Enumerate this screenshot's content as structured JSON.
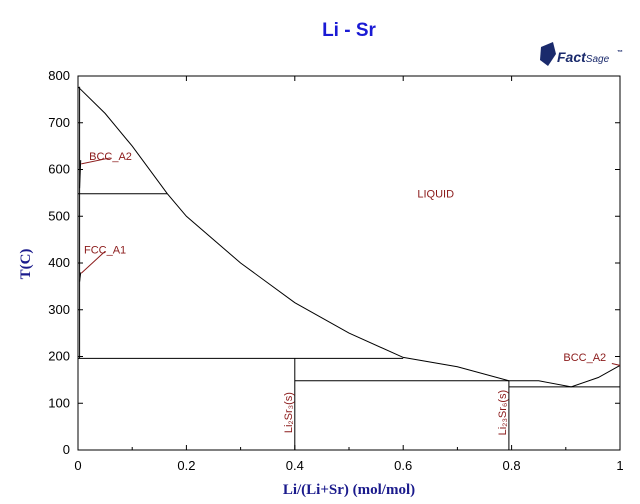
{
  "chart_data": {
    "type": "line",
    "title": "Li - Sr",
    "xlabel": "Li/(Li+Sr) (mol/mol)",
    "ylabel": "T(C)",
    "xlim": [
      0,
      1
    ],
    "ylim": [
      0,
      800
    ],
    "x_ticks": [
      0,
      0.2,
      0.4,
      0.6,
      0.8,
      1
    ],
    "y_ticks": [
      0,
      100,
      200,
      300,
      400,
      500,
      600,
      700,
      800
    ],
    "x_tick_labels": [
      "0",
      "0.2",
      "0.4",
      "0.6",
      "0.8",
      "1"
    ],
    "y_tick_labels": [
      "0",
      "100",
      "200",
      "300",
      "400",
      "500",
      "600",
      "700",
      "800"
    ],
    "grid": false,
    "series": [
      {
        "name": "",
        "kind": "liquidus",
        "points": [
          [
            0,
            777
          ],
          [
            0.05,
            720
          ],
          [
            0.1,
            650
          ],
          [
            0.165,
            548
          ],
          [
            0.2,
            500
          ],
          [
            0.3,
            400
          ],
          [
            0.4,
            315
          ],
          [
            0.5,
            250
          ],
          [
            0.6,
            198
          ],
          [
            0.7,
            178
          ],
          [
            0.795,
            148
          ],
          [
            0.85,
            148
          ],
          [
            0.91,
            135
          ],
          [
            0.96,
            155
          ],
          [
            1,
            181
          ]
        ]
      },
      {
        "name": "",
        "kind": "line",
        "points": [
          [
            0,
            548
          ],
          [
            0.165,
            548
          ]
        ]
      },
      {
        "name": "",
        "kind": "line",
        "points": [
          [
            0,
            196
          ],
          [
            0.6,
            196
          ]
        ]
      },
      {
        "name": "",
        "kind": "line",
        "points": [
          [
            0.4,
            148
          ],
          [
            0.795,
            148
          ]
        ]
      },
      {
        "name": "",
        "kind": "line",
        "points": [
          [
            0.795,
            135
          ],
          [
            1,
            135
          ]
        ]
      },
      {
        "name": "",
        "kind": "line",
        "points": [
          [
            0.4,
            0
          ],
          [
            0.4,
            196
          ]
        ]
      },
      {
        "name": "",
        "kind": "line",
        "points": [
          [
            0.795,
            0
          ],
          [
            0.795,
            148
          ]
        ]
      },
      {
        "name": "",
        "kind": "line",
        "points": [
          [
            0.003,
            196
          ],
          [
            0.003,
            777
          ]
        ]
      },
      {
        "name": "",
        "kind": "line",
        "points": [
          [
            0.005,
            380
          ],
          [
            0.003,
            360
          ]
        ]
      },
      {
        "name": "",
        "kind": "line",
        "points": [
          [
            0.005,
            620
          ],
          [
            0.003,
            560
          ]
        ]
      }
    ],
    "annotations": [
      {
        "text": "LIQUID",
        "x": 0.66,
        "y": 540,
        "rotate": 0
      },
      {
        "text": "BCC_A2",
        "x": 0.06,
        "y": 620,
        "rotate": 0
      },
      {
        "text": "FCC_A1",
        "x": 0.05,
        "y": 420,
        "rotate": 0
      },
      {
        "text": "BCC_A2",
        "x": 0.935,
        "y": 190,
        "rotate": 0
      },
      {
        "text": "Li2Sr3(s)",
        "display": "Li₂Sr₃(s)",
        "x": 0.395,
        "y": 80,
        "rotate": -90
      },
      {
        "text": "Li23Sr6(s)",
        "display": "Li₂₃Sr₆(s)",
        "x": 0.79,
        "y": 80,
        "rotate": -90
      }
    ],
    "leader_lines": [
      {
        "from": [
          0.06,
          625
        ],
        "to": [
          0.006,
          612
        ]
      },
      {
        "from": [
          0.05,
          425
        ],
        "to": [
          0.006,
          378
        ]
      },
      {
        "from": [
          0.985,
          185
        ],
        "to": [
          1,
          181
        ]
      }
    ]
  },
  "logo": {
    "text": "FactSage",
    "mark": "™"
  }
}
